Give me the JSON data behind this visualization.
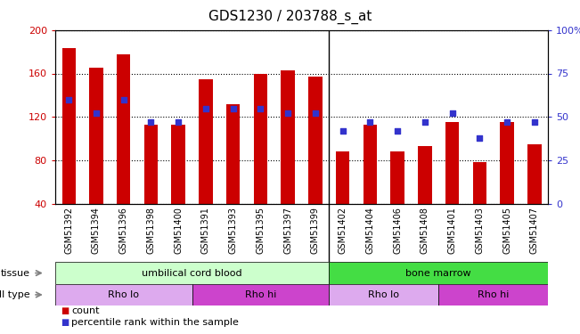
{
  "title": "GDS1230 / 203788_s_at",
  "samples": [
    "GSM51392",
    "GSM51394",
    "GSM51396",
    "GSM51398",
    "GSM51400",
    "GSM51391",
    "GSM51393",
    "GSM51395",
    "GSM51397",
    "GSM51399",
    "GSM51402",
    "GSM51404",
    "GSM51406",
    "GSM51408",
    "GSM51401",
    "GSM51403",
    "GSM51405",
    "GSM51407"
  ],
  "bar_values": [
    183,
    165,
    178,
    113,
    113,
    155,
    132,
    160,
    163,
    157,
    88,
    113,
    88,
    93,
    115,
    78,
    115,
    95
  ],
  "dot_values_pct": [
    60,
    52,
    60,
    47,
    47,
    55,
    55,
    55,
    52,
    52,
    42,
    47,
    42,
    47,
    52,
    38,
    47,
    47
  ],
  "ylim_left": [
    40,
    200
  ],
  "ylim_right": [
    0,
    100
  ],
  "yticks_left": [
    40,
    80,
    120,
    160,
    200
  ],
  "yticks_right": [
    0,
    25,
    50,
    75,
    100
  ],
  "ytick_labels_right": [
    "0",
    "25",
    "50",
    "75",
    "100%"
  ],
  "bar_color": "#cc0000",
  "dot_color": "#3333cc",
  "tissue_groups": [
    {
      "label": "umbilical cord blood",
      "start": 0,
      "end": 10,
      "color": "#ccffcc"
    },
    {
      "label": "bone marrow",
      "start": 10,
      "end": 18,
      "color": "#44dd44"
    }
  ],
  "cell_type_groups": [
    {
      "label": "Rho lo",
      "start": 0,
      "end": 5,
      "color": "#ddaaee"
    },
    {
      "label": "Rho hi",
      "start": 5,
      "end": 10,
      "color": "#cc44cc"
    },
    {
      "label": "Rho lo",
      "start": 10,
      "end": 14,
      "color": "#ddaaee"
    },
    {
      "label": "Rho hi",
      "start": 14,
      "end": 18,
      "color": "#cc44cc"
    }
  ],
  "legend_count_label": "count",
  "legend_pct_label": "percentile rank within the sample",
  "tissue_label": "tissue",
  "cell_type_label": "cell type",
  "xlabel_fontsize": 7,
  "title_fontsize": 11,
  "axis_color_left": "#cc0000",
  "axis_color_right": "#3333cc",
  "plot_bg_color": "#ffffff",
  "fig_bg_color": "#ffffff",
  "xlabels_bg_color": "#d8d8d8",
  "grid_linestyle": ":",
  "grid_color": "#000000",
  "bar_width": 0.5,
  "dot_size": 20
}
